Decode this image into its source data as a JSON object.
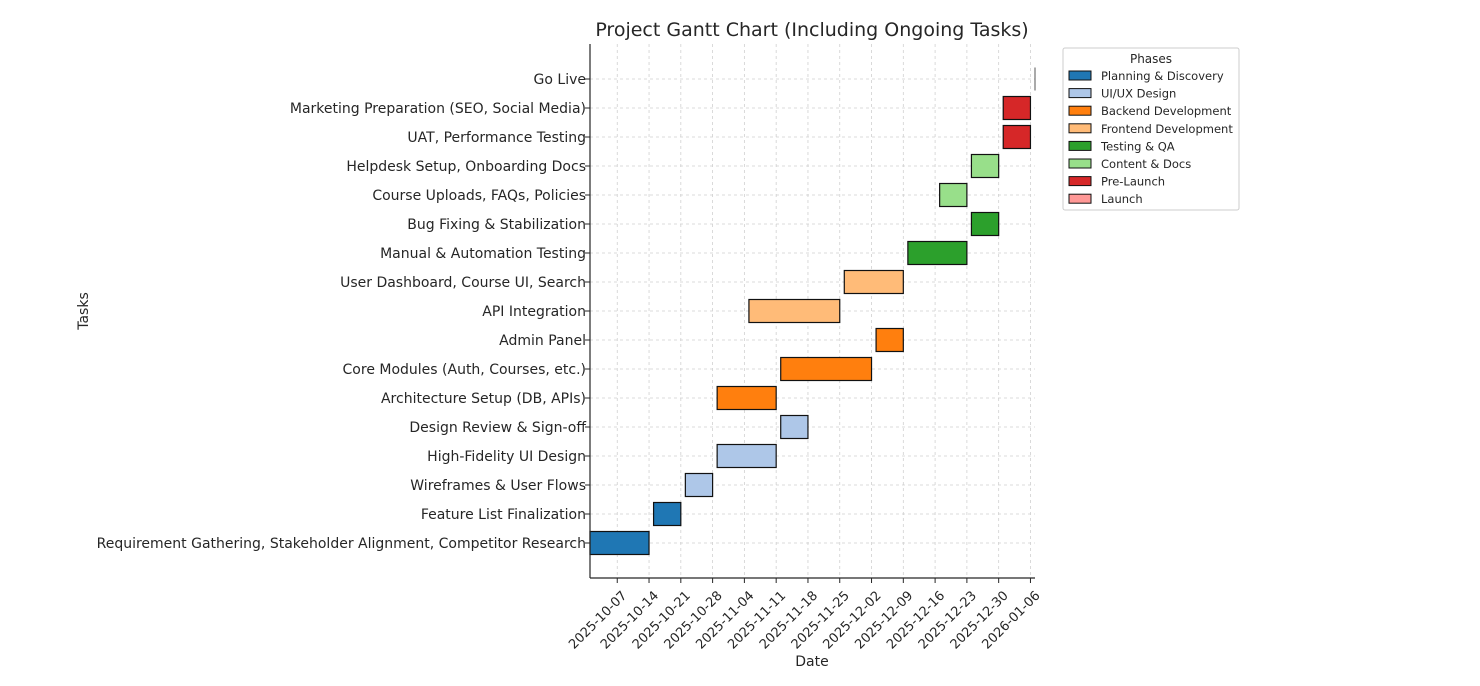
{
  "chart_data": {
    "type": "gantt",
    "title": "Project Gantt Chart (Including Ongoing Tasks)",
    "xlabel": "Date",
    "ylabel": "Tasks",
    "x_ticks": [
      "2025-10-07",
      "2025-10-14",
      "2025-10-21",
      "2025-10-28",
      "2025-11-04",
      "2025-11-11",
      "2025-11-18",
      "2025-11-25",
      "2025-12-02",
      "2025-12-09",
      "2025-12-16",
      "2025-12-23",
      "2025-12-30",
      "2026-01-06"
    ],
    "xlim": [
      "2025-10-01",
      "2026-01-07"
    ],
    "grid": true,
    "legend": {
      "title": "Phases",
      "placement": "upper-right-outside",
      "entries": [
        {
          "phase": "Planning & Discovery",
          "color": "#1f77b4"
        },
        {
          "phase": "UI/UX Design",
          "color": "#aec7e8"
        },
        {
          "phase": "Backend Development",
          "color": "#ff7f0e"
        },
        {
          "phase": "Frontend Development",
          "color": "#ffbb78"
        },
        {
          "phase": "Testing & QA",
          "color": "#2ca02c"
        },
        {
          "phase": "Content & Docs",
          "color": "#98df8a"
        },
        {
          "phase": "Pre-Launch",
          "color": "#d62728"
        },
        {
          "phase": "Launch",
          "color": "#ff9896"
        }
      ]
    },
    "tasks": [
      {
        "task": "Requirement Gathering, Stakeholder Alignment, Competitor Research",
        "phase": "Planning & Discovery",
        "start": "2025-10-01",
        "end": "2025-10-14"
      },
      {
        "task": "Feature List Finalization",
        "phase": "Planning & Discovery",
        "start": "2025-10-15",
        "end": "2025-10-21"
      },
      {
        "task": "Wireframes & User Flows",
        "phase": "UI/UX Design",
        "start": "2025-10-22",
        "end": "2025-10-28"
      },
      {
        "task": "High-Fidelity UI Design",
        "phase": "UI/UX Design",
        "start": "2025-10-29",
        "end": "2025-11-11"
      },
      {
        "task": "Design Review & Sign-off",
        "phase": "UI/UX Design",
        "start": "2025-11-12",
        "end": "2025-11-18"
      },
      {
        "task": "Architecture Setup (DB, APIs)",
        "phase": "Backend Development",
        "start": "2025-10-29",
        "end": "2025-11-11"
      },
      {
        "task": "Core Modules (Auth, Courses, etc.)",
        "phase": "Backend Development",
        "start": "2025-11-12",
        "end": "2025-12-02"
      },
      {
        "task": "Admin Panel",
        "phase": "Backend Development",
        "start": "2025-12-03",
        "end": "2025-12-09"
      },
      {
        "task": "API Integration",
        "phase": "Frontend Development",
        "start": "2025-11-05",
        "end": "2025-11-25"
      },
      {
        "task": "User Dashboard, Course UI, Search",
        "phase": "Frontend Development",
        "start": "2025-11-26",
        "end": "2025-12-09"
      },
      {
        "task": "Manual & Automation Testing",
        "phase": "Testing & QA",
        "start": "2025-12-10",
        "end": "2025-12-23"
      },
      {
        "task": "Bug Fixing & Stabilization",
        "phase": "Testing & QA",
        "start": "2025-12-24",
        "end": "2025-12-30"
      },
      {
        "task": "Course Uploads, FAQs, Policies",
        "phase": "Content & Docs",
        "start": "2025-12-17",
        "end": "2025-12-23"
      },
      {
        "task": "Helpdesk Setup, Onboarding Docs",
        "phase": "Content & Docs",
        "start": "2025-12-24",
        "end": "2025-12-30"
      },
      {
        "task": "UAT, Performance Testing",
        "phase": "Pre-Launch",
        "start": "2025-12-31",
        "end": "2026-01-06"
      },
      {
        "task": "Marketing Preparation (SEO, Social Media)",
        "phase": "Pre-Launch",
        "start": "2025-12-31",
        "end": "2026-01-06"
      },
      {
        "task": "Go Live",
        "phase": "Launch",
        "start": "2026-01-07",
        "end": "2026-01-07"
      }
    ]
  }
}
